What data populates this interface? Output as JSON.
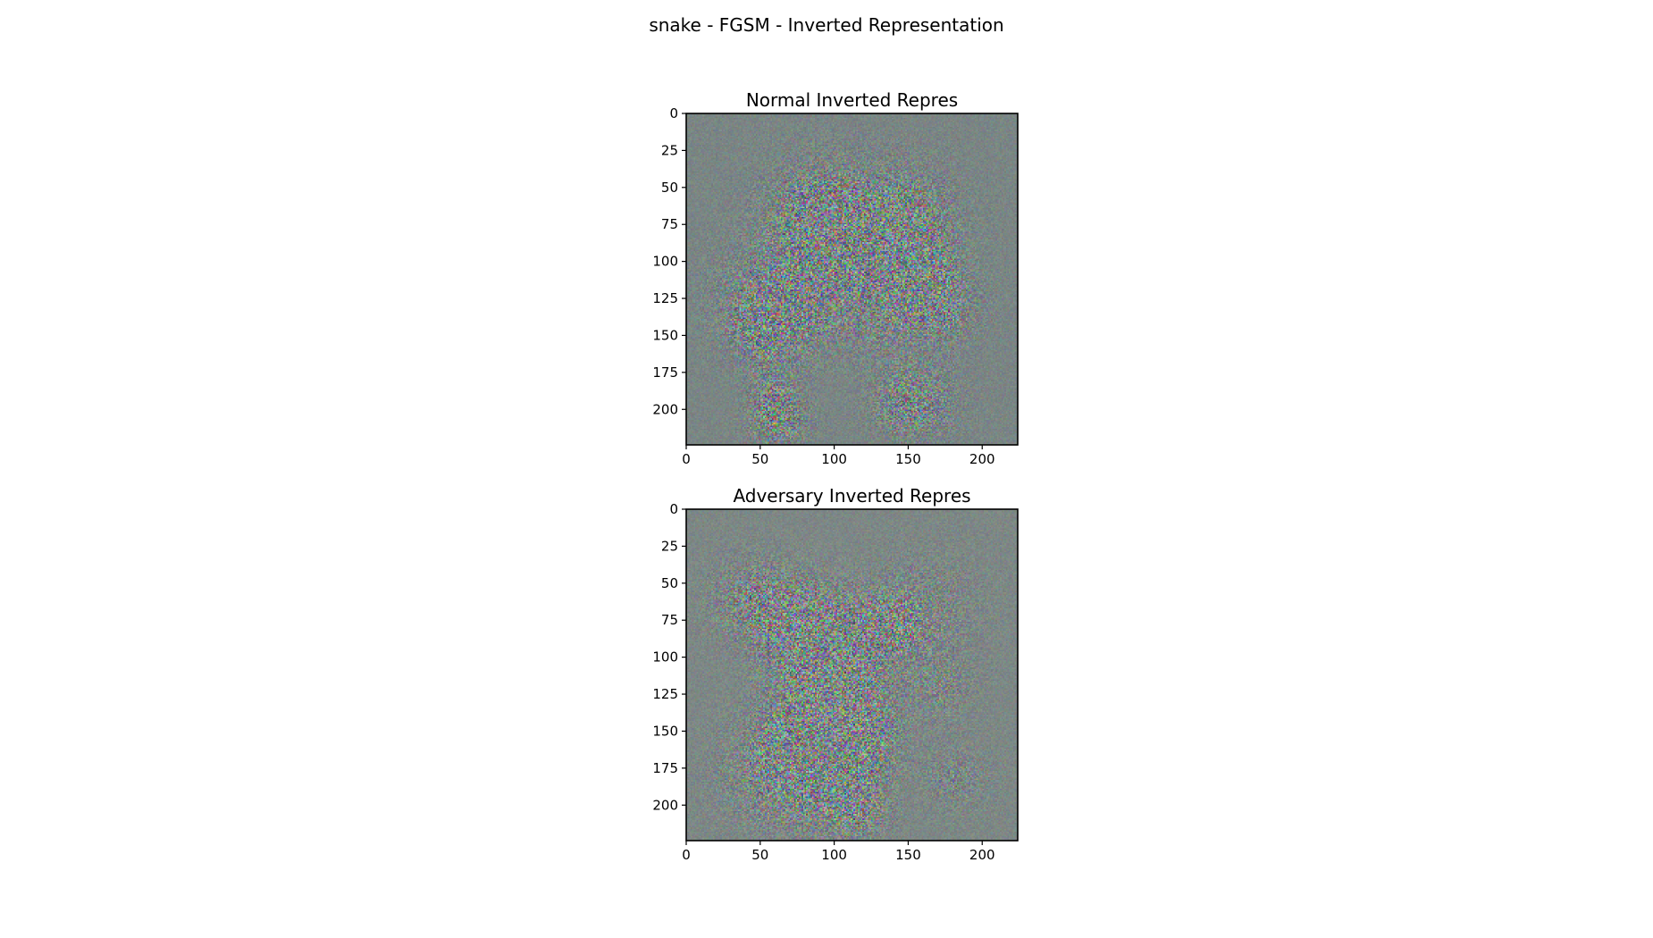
{
  "figure": {
    "title": "snake - FGSM - Inverted Representation"
  },
  "chart_data": [
    {
      "type": "heatmap",
      "title": "Normal Inverted Repres",
      "xlabel": "",
      "ylabel": "",
      "image_size": [
        224,
        224
      ],
      "xlim": [
        0,
        224
      ],
      "ylim": [
        224,
        0
      ],
      "x_ticks": [
        0,
        50,
        100,
        150,
        200
      ],
      "y_ticks": [
        0,
        25,
        50,
        75,
        100,
        125,
        150,
        175,
        200
      ],
      "base_color": "#7a8584",
      "grid": false
    },
    {
      "type": "heatmap",
      "title": "Adversary Inverted Repres",
      "xlabel": "",
      "ylabel": "",
      "image_size": [
        224,
        224
      ],
      "xlim": [
        0,
        224
      ],
      "ylim": [
        224,
        0
      ],
      "x_ticks": [
        0,
        50,
        100,
        150,
        200
      ],
      "y_ticks": [
        0,
        25,
        50,
        75,
        100,
        125,
        150,
        175,
        200
      ],
      "base_color": "#7d8785",
      "grid": false
    }
  ]
}
